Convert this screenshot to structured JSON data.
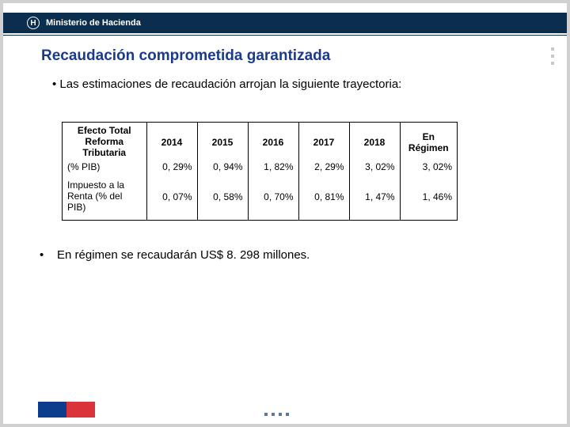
{
  "header": {
    "logo_letter": "H",
    "ministry": "Ministerio de Hacienda"
  },
  "title": "Recaudación comprometida garantizada",
  "bullet1": "Las estimaciones de recaudación arrojan la siguiente trayectoria:",
  "table": {
    "row_header_label": "Efecto Total Reforma Tributaria",
    "columns": [
      "2014",
      "2015",
      "2016",
      "2017",
      "2018",
      "En Régimen"
    ],
    "rows": [
      {
        "label": "(% PIB)",
        "values": [
          "0, 29%",
          "0, 94%",
          "1, 82%",
          "2, 29%",
          "3, 02%",
          "3, 02%"
        ]
      },
      {
        "label": "Impuesto a la Renta (% del PIB)",
        "values": [
          "0, 07%",
          "0, 58%",
          "0, 70%",
          "0, 81%",
          "1, 47%",
          "1, 46%"
        ]
      }
    ]
  },
  "bullet2": "En régimen se recaudarán US$ 8. 298 millones.",
  "colors": {
    "header_bg": "#0b2e4f",
    "title_color": "#1a3a8a",
    "footer_blue": "#0b3d8c",
    "footer_red": "#d8343a"
  }
}
